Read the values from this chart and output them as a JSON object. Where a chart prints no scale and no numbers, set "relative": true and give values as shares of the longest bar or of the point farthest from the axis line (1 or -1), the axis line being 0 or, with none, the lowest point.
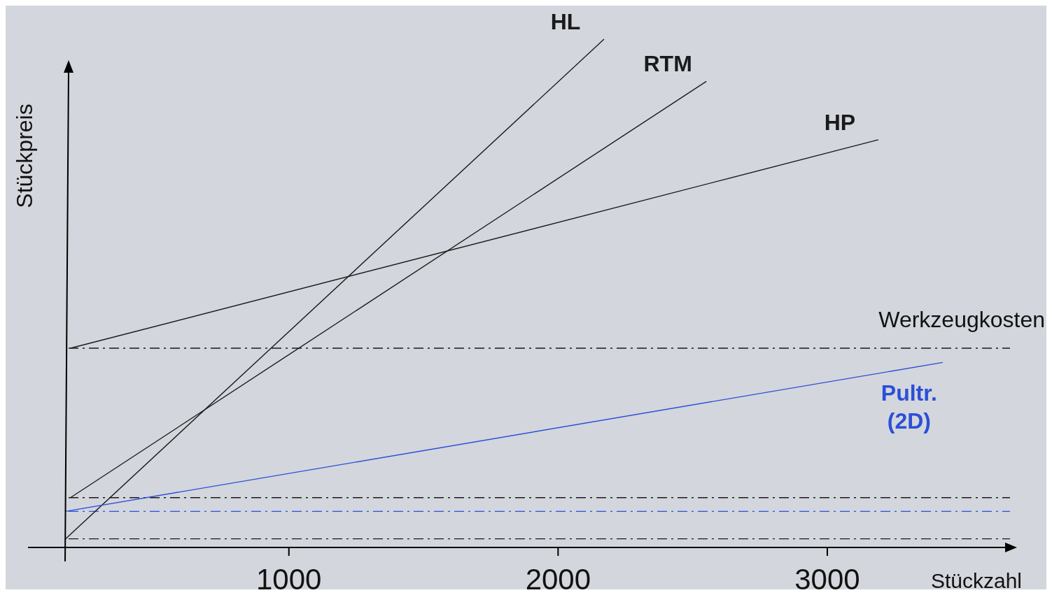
{
  "chart_data": {
    "type": "line",
    "relative": true,
    "xlabel": "Stückzahl",
    "ylabel": "Stückpreis",
    "xlim": [
      170,
      3680
    ],
    "xticks": [
      1000,
      2000,
      3000
    ],
    "series": [
      {
        "name": "HL",
        "color": "#1a1a1a",
        "x": [
          172,
          2172
        ],
        "values": [
          0.017,
          1.0
        ]
      },
      {
        "name": "RTM",
        "color": "#1a1a1a",
        "x": [
          190,
          2552
        ],
        "values": [
          0.098,
          0.917
        ]
      },
      {
        "name": "HP",
        "color": "#1a1a1a",
        "x": [
          190,
          3191
        ],
        "values": [
          0.392,
          0.802
        ]
      },
      {
        "name": "Pultr. (2D)",
        "color": "#2b4fd8",
        "x": [
          172,
          3430
        ],
        "values": [
          0.071,
          0.364
        ]
      }
    ],
    "ref_lines": [
      {
        "axis": "y",
        "value": 0.392,
        "label": "Werkzeugkosten",
        "color": "#1a1a1a",
        "line_style": "dashed"
      },
      {
        "axis": "y",
        "value": 0.098,
        "label": null,
        "color": "#1a1a1a",
        "line_style": "dashed"
      },
      {
        "axis": "y",
        "value": 0.071,
        "label": null,
        "color": "#2b4fd8",
        "line_style": "dashed"
      },
      {
        "axis": "y",
        "value": 0.017,
        "label": null,
        "color": "#1a1a1a",
        "line_style": "dashed"
      }
    ]
  }
}
